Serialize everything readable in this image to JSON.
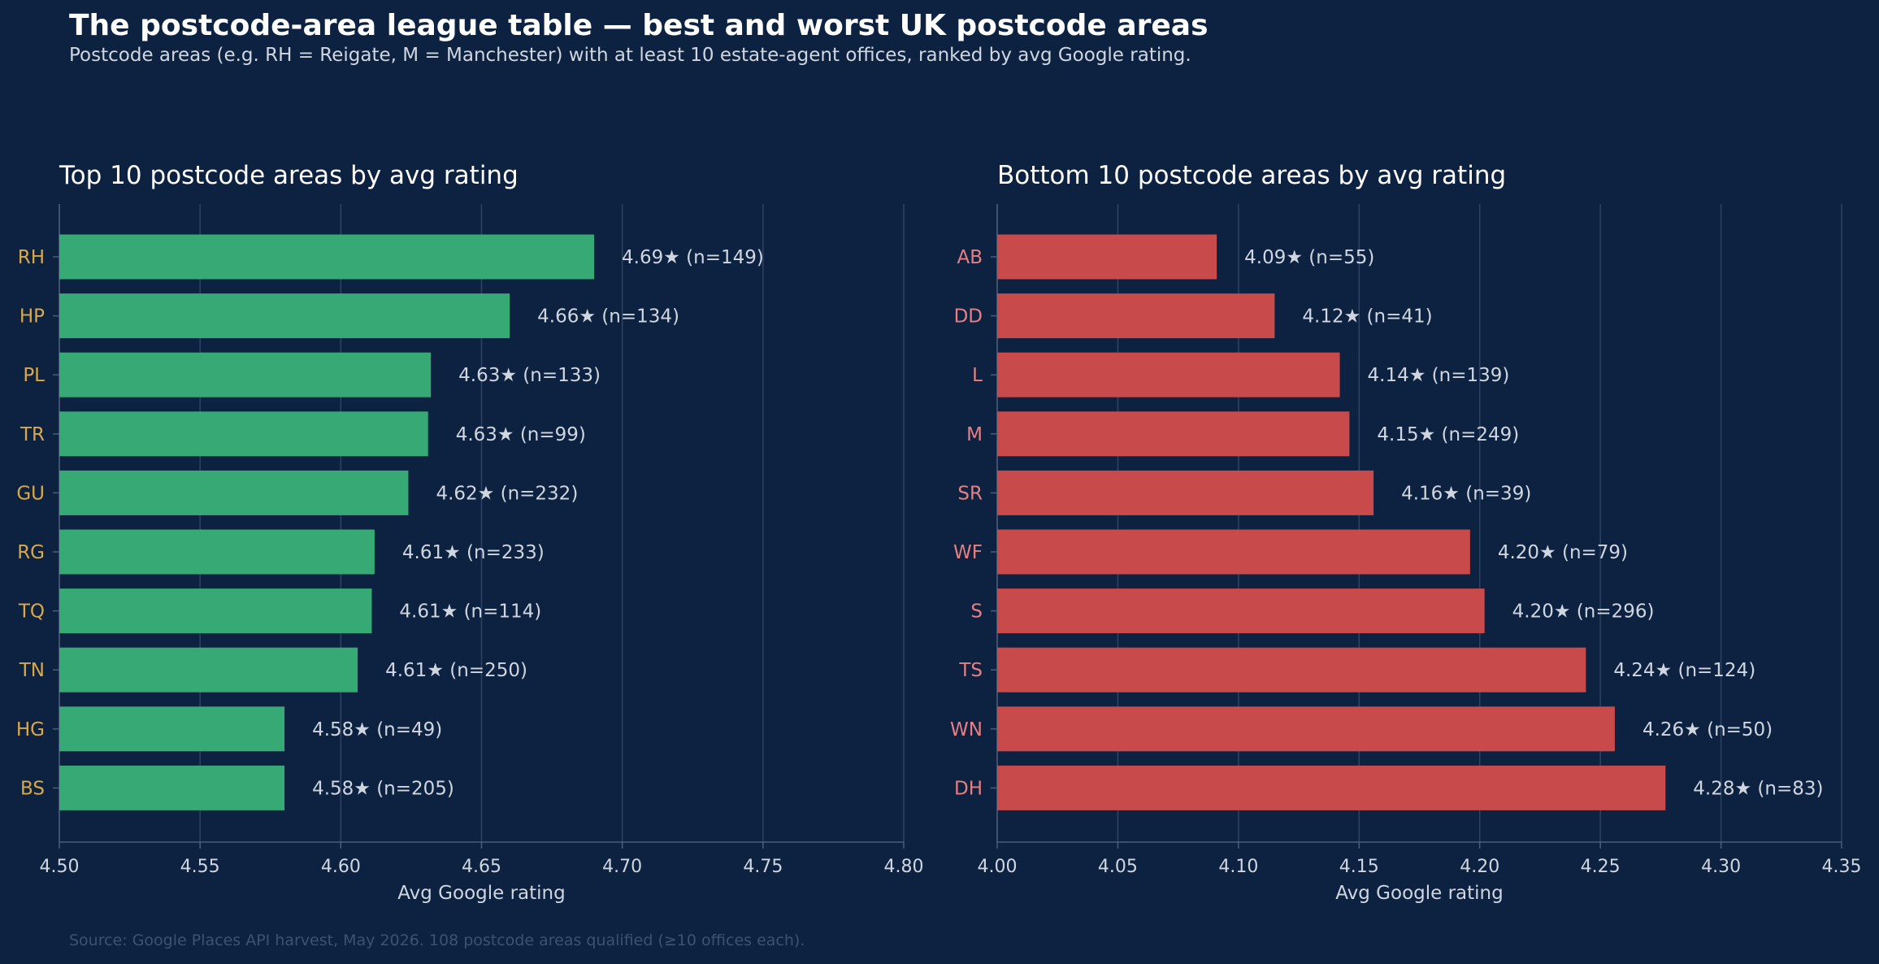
{
  "title": "The postcode-area league table — best and worst UK postcode areas",
  "subtitle": "Postcode areas (e.g. RH = Reigate, M = Manchester) with at least 10 estate-agent offices, ranked by avg Google rating.",
  "source": "Source: Google Places API harvest, May 2026. 108 postcode areas qualified (≥10 offices each).",
  "colors": {
    "background": "#0d2240",
    "top_bar": "#37a975",
    "bottom_bar": "#c94a4b",
    "top_label": "#d8a84a",
    "bottom_label": "#e87f82",
    "text": "#cfd6e0",
    "grid": "#2e4363"
  },
  "chart_data": [
    {
      "type": "bar",
      "orientation": "horizontal",
      "title": "Top 10 postcode areas by avg rating",
      "xlabel": "Avg Google rating",
      "ylabel": "",
      "xlim": [
        4.5,
        4.8
      ],
      "xticks": [
        "4.50",
        "4.55",
        "4.60",
        "4.65",
        "4.70",
        "4.75",
        "4.80"
      ],
      "grid": "vertical",
      "categories": [
        "RH",
        "HP",
        "PL",
        "TR",
        "GU",
        "RG",
        "TQ",
        "TN",
        "HG",
        "BS"
      ],
      "values": [
        4.69,
        4.66,
        4.632,
        4.631,
        4.624,
        4.612,
        4.611,
        4.606,
        4.58,
        4.58
      ],
      "value_labels": [
        "4.69★  (n=149)",
        "4.66★  (n=134)",
        "4.63★  (n=133)",
        "4.63★  (n=99)",
        "4.62★  (n=232)",
        "4.61★  (n=233)",
        "4.61★  (n=114)",
        "4.61★  (n=250)",
        "4.58★  (n=49)",
        "4.58★  (n=205)"
      ]
    },
    {
      "type": "bar",
      "orientation": "horizontal",
      "title": "Bottom 10 postcode areas by avg rating",
      "xlabel": "Avg Google rating",
      "ylabel": "",
      "xlim": [
        4.0,
        4.35
      ],
      "xticks": [
        "4.00",
        "4.05",
        "4.10",
        "4.15",
        "4.20",
        "4.25",
        "4.30",
        "4.35"
      ],
      "grid": "vertical",
      "categories": [
        "AB",
        "DD",
        "L",
        "M",
        "SR",
        "WF",
        "S",
        "TS",
        "WN",
        "DH"
      ],
      "values": [
        4.091,
        4.115,
        4.142,
        4.146,
        4.156,
        4.196,
        4.202,
        4.244,
        4.256,
        4.277
      ],
      "value_labels": [
        "4.09★  (n=55)",
        "4.12★  (n=41)",
        "4.14★  (n=139)",
        "4.15★  (n=249)",
        "4.16★  (n=39)",
        "4.20★  (n=79)",
        "4.20★  (n=296)",
        "4.24★  (n=124)",
        "4.26★  (n=50)",
        "4.28★  (n=83)"
      ]
    }
  ]
}
